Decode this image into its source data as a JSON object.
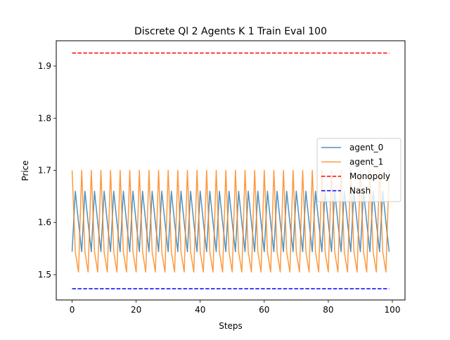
{
  "chart_data": {
    "type": "line",
    "title": "Discrete Ql 2 Agents K 1 Train Eval 100",
    "xlabel": "Steps",
    "ylabel": "Price",
    "xlim": [
      -4.95,
      103.95
    ],
    "ylim": [
      1.4515,
      1.9485
    ],
    "xticks": [
      0,
      20,
      40,
      60,
      80,
      100
    ],
    "xtick_labels": [
      "0",
      "20",
      "40",
      "60",
      "80",
      "100"
    ],
    "yticks": [
      1.5,
      1.6,
      1.7,
      1.8,
      1.9
    ],
    "ytick_labels": [
      "1.5",
      "1.6",
      "1.7",
      "1.8",
      "1.9"
    ],
    "grid": false,
    "legend_position": "center-right",
    "x": {
      "start": 0,
      "end": 99,
      "step": 1
    },
    "series": [
      {
        "name": "agent_0",
        "color": "#1f77b4",
        "style": "solid",
        "cycle": [
          1.544,
          1.66,
          1.6,
          1.544,
          1.66,
          1.6
        ],
        "pattern_note_values": [
          1.544,
          1.66,
          1.6
        ]
      },
      {
        "name": "agent_1",
        "color": "#ff7f0e",
        "style": "solid",
        "cycle": [
          1.7,
          1.544,
          1.505,
          1.7,
          1.544,
          1.505
        ],
        "pattern_note_values": [
          1.7,
          1.544,
          1.505
        ]
      },
      {
        "name": "Monopoly",
        "color": "#ff0000",
        "style": "dashed",
        "constant": 1.925
      },
      {
        "name": "Nash",
        "color": "#0000ff",
        "style": "dashed",
        "constant": 1.473
      }
    ]
  }
}
